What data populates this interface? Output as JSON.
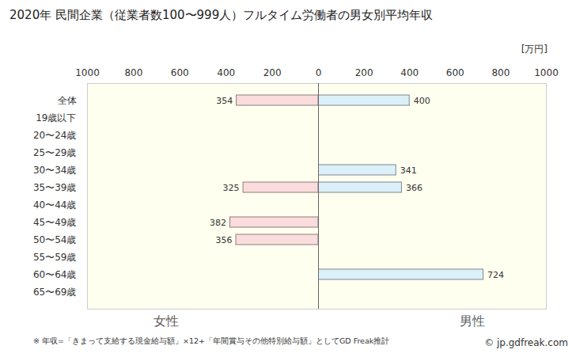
{
  "chart_data": {
    "type": "bar",
    "orientation": "horizontal",
    "title": "2020年 民間企業（従業者数100〜999人）フルタイム労働者の男女別平均年収",
    "categories": [
      "全体",
      "19歳以下",
      "20〜24歳",
      "25〜29歳",
      "30〜34歳",
      "35〜39歳",
      "40〜44歳",
      "45〜49歳",
      "50〜54歳",
      "55〜59歳",
      "60〜64歳",
      "65〜69歳"
    ],
    "series": [
      {
        "name": "女性",
        "color": "#fadcdc",
        "values": [
          354,
          null,
          null,
          null,
          null,
          325,
          null,
          382,
          356,
          null,
          null,
          null
        ]
      },
      {
        "name": "男性",
        "color": "#dcf0fa",
        "values": [
          400,
          null,
          null,
          null,
          341,
          366,
          null,
          null,
          null,
          null,
          724,
          null
        ]
      }
    ],
    "xlim": [
      0,
      1000
    ],
    "xticks": [
      0,
      200,
      400,
      600,
      800,
      1000
    ],
    "xlabel": "[万円]",
    "data_labels": true,
    "grid": false,
    "note": "※ 年収=「きまって支給する現金給与額」×12+「年間賞与その他特別給与額」としてGD Freak推計",
    "source": "© jp.gdfreak.com"
  }
}
